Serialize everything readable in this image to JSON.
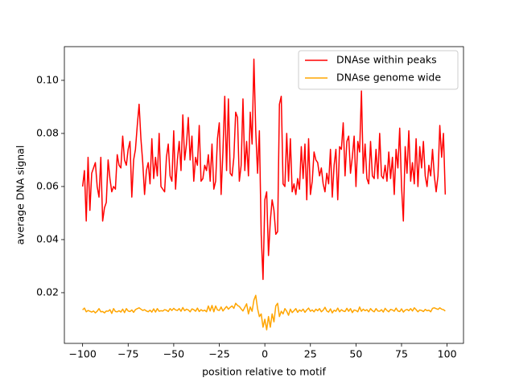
{
  "chart_data": {
    "type": "line",
    "xlabel": "position relative to motif",
    "ylabel": "average DNA signal",
    "x": [
      -100,
      -99,
      -98,
      -97,
      -96,
      -95,
      -94,
      -93,
      -92,
      -91,
      -90,
      -89,
      -88,
      -87,
      -86,
      -85,
      -84,
      -83,
      -82,
      -81,
      -80,
      -79,
      -78,
      -77,
      -76,
      -75,
      -74,
      -73,
      -72,
      -71,
      -70,
      -69,
      -68,
      -67,
      -66,
      -65,
      -64,
      -63,
      -62,
      -61,
      -60,
      -59,
      -58,
      -57,
      -56,
      -55,
      -54,
      -53,
      -52,
      -51,
      -50,
      -49,
      -48,
      -47,
      -46,
      -45,
      -44,
      -43,
      -42,
      -41,
      -40,
      -39,
      -38,
      -37,
      -36,
      -35,
      -34,
      -33,
      -32,
      -31,
      -30,
      -29,
      -28,
      -27,
      -26,
      -25,
      -24,
      -23,
      -22,
      -21,
      -20,
      -19,
      -18,
      -17,
      -16,
      -15,
      -14,
      -13,
      -12,
      -11,
      -10,
      -9,
      -8,
      -7,
      -6,
      -5,
      -4,
      -3,
      -2,
      -1,
      0,
      1,
      2,
      3,
      4,
      5,
      6,
      7,
      8,
      9,
      10,
      11,
      12,
      13,
      14,
      15,
      16,
      17,
      18,
      19,
      20,
      21,
      22,
      23,
      24,
      25,
      26,
      27,
      28,
      29,
      30,
      31,
      32,
      33,
      34,
      35,
      36,
      37,
      38,
      39,
      40,
      41,
      42,
      43,
      44,
      45,
      46,
      47,
      48,
      49,
      50,
      51,
      52,
      53,
      54,
      55,
      56,
      57,
      58,
      59,
      60,
      61,
      62,
      63,
      64,
      65,
      66,
      67,
      68,
      69,
      70,
      71,
      72,
      73,
      74,
      75,
      76,
      77,
      78,
      79,
      80,
      81,
      82,
      83,
      84,
      85,
      86,
      87,
      88,
      89,
      90,
      91,
      92,
      93,
      94,
      95,
      96,
      97,
      98,
      99
    ],
    "series": [
      {
        "name": "DNAse within peaks",
        "color": "#ff0000",
        "values": [
          0.06,
          0.066,
          0.047,
          0.071,
          0.051,
          0.065,
          0.067,
          0.069,
          0.06,
          0.056,
          0.071,
          0.047,
          0.052,
          0.054,
          0.07,
          0.063,
          0.058,
          0.06,
          0.059,
          0.072,
          0.068,
          0.067,
          0.079,
          0.07,
          0.068,
          0.074,
          0.077,
          0.056,
          0.07,
          0.074,
          0.083,
          0.091,
          0.078,
          0.069,
          0.057,
          0.066,
          0.069,
          0.061,
          0.078,
          0.063,
          0.071,
          0.064,
          0.08,
          0.06,
          0.059,
          0.058,
          0.071,
          0.076,
          0.064,
          0.062,
          0.081,
          0.059,
          0.07,
          0.077,
          0.066,
          0.087,
          0.07,
          0.076,
          0.086,
          0.07,
          0.079,
          0.062,
          0.071,
          0.068,
          0.083,
          0.062,
          0.063,
          0.068,
          0.066,
          0.072,
          0.062,
          0.076,
          0.059,
          0.062,
          0.078,
          0.084,
          0.057,
          0.073,
          0.094,
          0.066,
          0.093,
          0.065,
          0.064,
          0.071,
          0.088,
          0.086,
          0.062,
          0.068,
          0.093,
          0.066,
          0.077,
          0.064,
          0.088,
          0.076,
          0.108,
          0.081,
          0.065,
          0.081,
          0.042,
          0.025,
          0.055,
          0.058,
          0.034,
          0.047,
          0.055,
          0.051,
          0.042,
          0.043,
          0.091,
          0.094,
          0.061,
          0.06,
          0.08,
          0.062,
          0.078,
          0.058,
          0.061,
          0.057,
          0.063,
          0.059,
          0.075,
          0.063,
          0.076,
          0.055,
          0.078,
          0.057,
          0.062,
          0.073,
          0.07,
          0.069,
          0.064,
          0.067,
          0.061,
          0.058,
          0.065,
          0.061,
          0.074,
          0.056,
          0.068,
          0.074,
          0.055,
          0.075,
          0.074,
          0.084,
          0.064,
          0.077,
          0.079,
          0.065,
          0.071,
          0.079,
          0.06,
          0.077,
          0.073,
          0.096,
          0.065,
          0.076,
          0.063,
          0.061,
          0.077,
          0.064,
          0.063,
          0.074,
          0.063,
          0.08,
          0.064,
          0.063,
          0.068,
          0.062,
          0.073,
          0.063,
          0.071,
          0.057,
          0.074,
          0.067,
          0.082,
          0.06,
          0.047,
          0.075,
          0.065,
          0.081,
          0.062,
          0.069,
          0.061,
          0.078,
          0.06,
          0.075,
          0.067,
          0.077,
          0.064,
          0.06,
          0.068,
          0.064,
          0.074,
          0.064,
          0.058,
          0.064,
          0.083,
          0.071,
          0.08,
          0.057
        ]
      },
      {
        "name": "DNAse genome wide",
        "color": "#ffa500",
        "values": [
          0.0135,
          0.0142,
          0.0128,
          0.0133,
          0.013,
          0.0127,
          0.0131,
          0.0124,
          0.013,
          0.014,
          0.0128,
          0.0129,
          0.0124,
          0.0131,
          0.013,
          0.0136,
          0.0122,
          0.014,
          0.0129,
          0.0128,
          0.0132,
          0.0127,
          0.0138,
          0.0125,
          0.014,
          0.0131,
          0.0129,
          0.0135,
          0.0126,
          0.0136,
          0.014,
          0.0143,
          0.0138,
          0.0133,
          0.0136,
          0.0131,
          0.0128,
          0.0134,
          0.0127,
          0.0139,
          0.0127,
          0.014,
          0.013,
          0.0132,
          0.0131,
          0.0136,
          0.0134,
          0.0129,
          0.014,
          0.0133,
          0.0141,
          0.0135,
          0.0133,
          0.014,
          0.013,
          0.0144,
          0.0132,
          0.0138,
          0.0135,
          0.0128,
          0.0139,
          0.0136,
          0.013,
          0.0142,
          0.0129,
          0.0136,
          0.0131,
          0.0134,
          0.0128,
          0.015,
          0.0131,
          0.0152,
          0.0128,
          0.015,
          0.0135,
          0.0133,
          0.0146,
          0.0131,
          0.014,
          0.0148,
          0.0138,
          0.0145,
          0.015,
          0.0141,
          0.016,
          0.0152,
          0.0148,
          0.0139,
          0.0131,
          0.0145,
          0.0158,
          0.012,
          0.0146,
          0.013,
          0.0172,
          0.019,
          0.014,
          0.011,
          0.012,
          0.007,
          0.01,
          0.006,
          0.011,
          0.007,
          0.012,
          0.009,
          0.015,
          0.016,
          0.011,
          0.013,
          0.012,
          0.014,
          0.013,
          0.0115,
          0.0138,
          0.0125,
          0.0132,
          0.014,
          0.0126,
          0.0135,
          0.013,
          0.0138,
          0.0126,
          0.0135,
          0.0142,
          0.013,
          0.0135,
          0.0128,
          0.0138,
          0.0132,
          0.014,
          0.0128,
          0.0134,
          0.0145,
          0.0131,
          0.0127,
          0.0139,
          0.0124,
          0.0134,
          0.013,
          0.0142,
          0.0128,
          0.0136,
          0.0131,
          0.0129,
          0.0141,
          0.013,
          0.014,
          0.0125,
          0.0135,
          0.0133,
          0.0128,
          0.0146,
          0.013,
          0.0138,
          0.0132,
          0.0136,
          0.0128,
          0.014,
          0.0132,
          0.0128,
          0.014,
          0.0131,
          0.013,
          0.0136,
          0.0127,
          0.0141,
          0.0133,
          0.0128,
          0.0137,
          0.0135,
          0.013,
          0.0142,
          0.0131,
          0.0129,
          0.0139,
          0.0127,
          0.0134,
          0.0137,
          0.0132,
          0.014,
          0.0131,
          0.0143,
          0.0136,
          0.0128,
          0.0135,
          0.0133,
          0.0129,
          0.0137,
          0.0132,
          0.0134,
          0.0128,
          0.0141,
          0.0143,
          0.014,
          0.0137,
          0.0143,
          0.0138,
          0.0136,
          0.0131
        ]
      }
    ],
    "xlim": [
      -110,
      109
    ],
    "ylim": [
      0.0009,
      0.1127
    ],
    "xticks": [
      {
        "value": -100,
        "label": "−100"
      },
      {
        "value": -75,
        "label": "−75"
      },
      {
        "value": -50,
        "label": "−50"
      },
      {
        "value": -25,
        "label": "−25"
      },
      0,
      25,
      50,
      75,
      100
    ],
    "yticks": [
      0.02,
      0.04,
      0.06,
      0.08,
      {
        "value": 0.1,
        "label": "0.10"
      }
    ],
    "grid": false,
    "legend": "upper right"
  }
}
